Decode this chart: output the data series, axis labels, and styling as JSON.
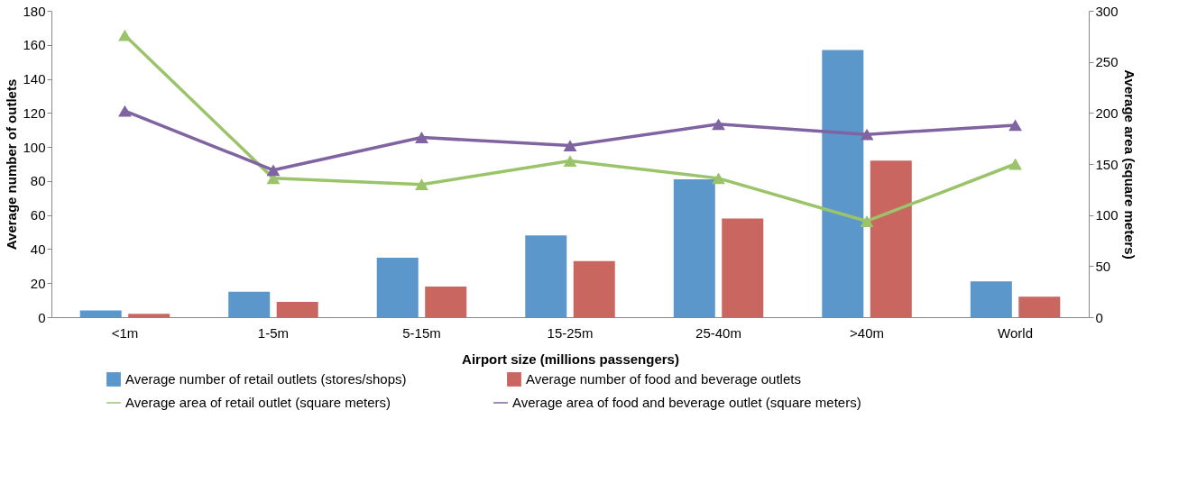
{
  "chart_data": {
    "type": "bar",
    "xlabel": "Airport size (millions passengers)",
    "ylabel": "Average number of outlets",
    "y2label": "Average area (square meters)",
    "categories": [
      "<1m",
      "1-5m",
      "5-15m",
      "15-25m",
      "25-40m",
      ">40m",
      "World"
    ],
    "series": [
      {
        "name": "Average number of retail outlets (stores/shops)",
        "color": "#5b97cb",
        "values": [
          4,
          15,
          35,
          48,
          81,
          157,
          21
        ]
      },
      {
        "name": "Average number of food and beverage outlets",
        "color": "#c96660",
        "values": [
          2,
          9,
          18,
          33,
          58,
          92,
          12
        ]
      },
      {
        "name": "Average area of retail outlet (square meters)",
        "type": "line",
        "axis": "y2",
        "color": "#9bc46a",
        "values": [
          276,
          136,
          130,
          153,
          136,
          94,
          150
        ]
      },
      {
        "name": "Average area of food and beverage outlet (square meters)",
        "type": "line",
        "axis": "y2",
        "color": "#8064a2",
        "values": [
          202,
          144,
          176,
          168,
          189,
          179,
          188
        ]
      }
    ],
    "ylim": [
      0,
      180
    ],
    "yticks": [
      0,
      20,
      40,
      60,
      80,
      100,
      120,
      140,
      160,
      180
    ],
    "y2lim": [
      0,
      300
    ],
    "y2ticks": [
      0,
      50,
      100,
      150,
      200,
      250,
      300
    ],
    "legend": "bottom",
    "marker": "triangle",
    "line_style": "solid",
    "grid": false
  }
}
